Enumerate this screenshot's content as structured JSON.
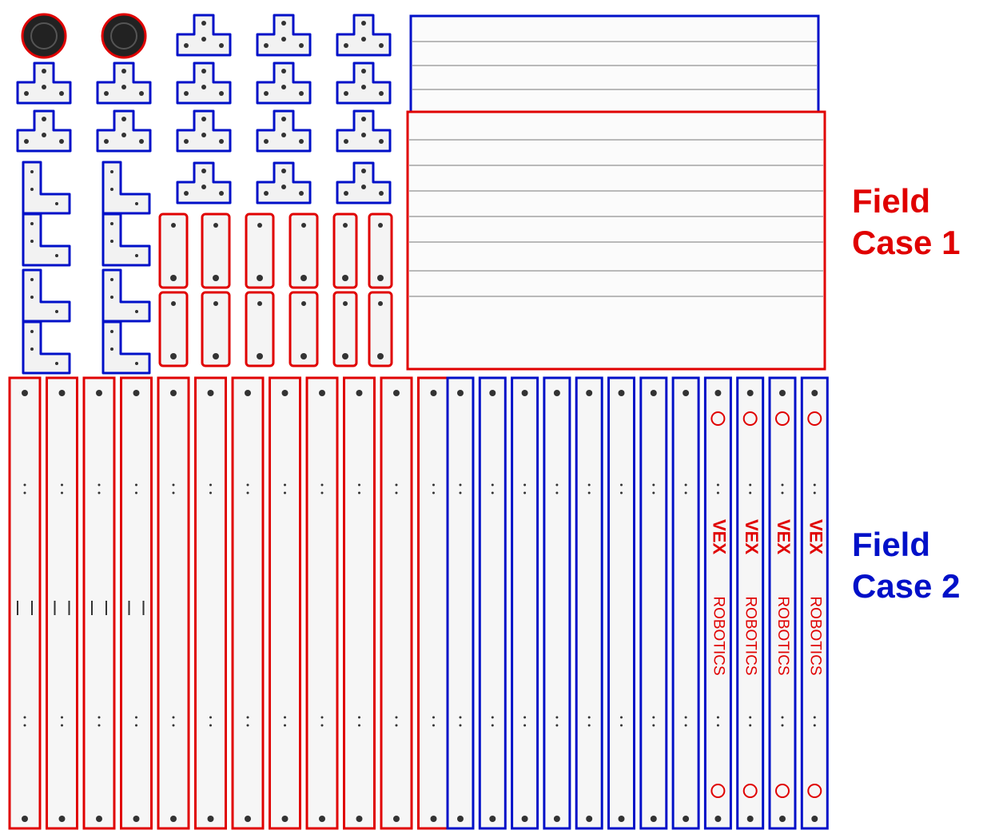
{
  "labels": [
    {
      "line1": "Field",
      "line2": "Case 1",
      "color": "#e00000"
    },
    {
      "line1": "Field",
      "line2": "Case 2",
      "color": "#0010c8"
    }
  ],
  "brand": {
    "mark": "VEX",
    "name": "ROBOTICS"
  }
}
